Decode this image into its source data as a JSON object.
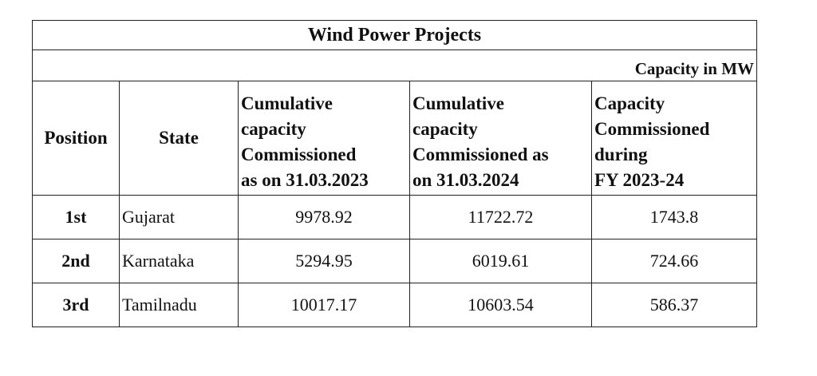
{
  "title": "Wind Power Projects",
  "unit_note": "Capacity in MW",
  "table": {
    "headers": [
      [
        "Position"
      ],
      [
        "State"
      ],
      [
        "Cumulative",
        "capacity",
        "Commissioned",
        "as on 31.03.2023"
      ],
      [
        "Cumulative",
        "capacity",
        "Commissioned as",
        "on 31.03.2024"
      ],
      [
        "Capacity",
        "Commissioned",
        "during",
        "FY 2023-24"
      ]
    ],
    "rows": [
      [
        "1st",
        "Gujarat",
        9978.92,
        11722.72,
        1743.8
      ],
      [
        "2nd",
        "Karnataka",
        5294.95,
        6019.61,
        724.66
      ],
      [
        "3rd",
        "Tamilnadu",
        10017.17,
        10603.54,
        586.37
      ]
    ]
  }
}
